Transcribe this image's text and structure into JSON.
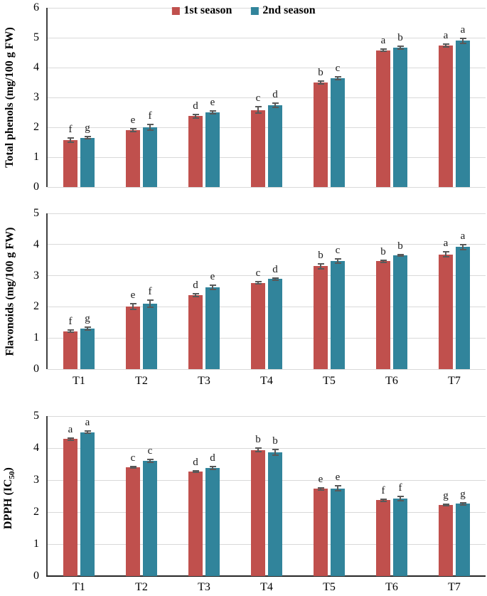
{
  "legend": {
    "items": [
      {
        "label": "1st season",
        "color": "#c0504d"
      },
      {
        "label": "2nd season",
        "color": "#31849b"
      }
    ]
  },
  "colors": {
    "series1": "#c0504d",
    "series2": "#31849b",
    "gridline": "#d9d9d9",
    "axis": "#404040",
    "error_bar": "#595959"
  },
  "chart_data": [
    {
      "type": "bar",
      "title": "",
      "xlabel": "",
      "ylabel": "Total phenols (mg/100 g FW)",
      "ylabel_prefix": "",
      "ylabel_sub": "",
      "ylabel_suffix": "",
      "ylim": [
        0,
        6
      ],
      "yticks": [
        0,
        1,
        2,
        3,
        4,
        5,
        6
      ],
      "grid": true,
      "legend_position": "top-center",
      "show_x_labels": false,
      "categories": [
        "T1",
        "T2",
        "T3",
        "T4",
        "T5",
        "T6",
        "T7"
      ],
      "series": [
        {
          "name": "1st season",
          "color": "#c0504d",
          "values": [
            1.58,
            1.9,
            2.37,
            2.58,
            3.5,
            4.58,
            4.73
          ],
          "errors": [
            0.07,
            0.05,
            0.06,
            0.1,
            0.04,
            0.03,
            0.05
          ],
          "letters": [
            "f",
            "e",
            "d",
            "c",
            "b",
            "a",
            "a"
          ]
        },
        {
          "name": "2nd season",
          "color": "#31849b",
          "values": [
            1.65,
            2.0,
            2.5,
            2.73,
            3.65,
            4.67,
            4.9
          ],
          "errors": [
            0.04,
            0.09,
            0.05,
            0.07,
            0.05,
            0.04,
            0.08
          ],
          "letters": [
            "g",
            "f",
            "e",
            "d",
            "c",
            "b",
            "a"
          ]
        }
      ]
    },
    {
      "type": "bar",
      "title": "",
      "xlabel": "",
      "ylabel": "Flavonoids (mg/100 g FW)",
      "ylabel_prefix": "",
      "ylabel_sub": "",
      "ylabel_suffix": "",
      "ylim": [
        0,
        5
      ],
      "yticks": [
        0,
        1,
        2,
        3,
        4,
        5
      ],
      "grid": true,
      "legend_position": "none",
      "show_x_labels": true,
      "categories": [
        "T1",
        "T2",
        "T3",
        "T4",
        "T5",
        "T6",
        "T7"
      ],
      "series": [
        {
          "name": "1st season",
          "color": "#c0504d",
          "values": [
            1.22,
            2.0,
            2.38,
            2.77,
            3.3,
            3.46,
            3.68
          ],
          "errors": [
            0.03,
            0.09,
            0.05,
            0.03,
            0.07,
            0.04,
            0.08
          ],
          "letters": [
            "f",
            "e",
            "d",
            "c",
            "b",
            "b",
            "a"
          ]
        },
        {
          "name": "2nd season",
          "color": "#31849b",
          "values": [
            1.3,
            2.1,
            2.63,
            2.89,
            3.47,
            3.65,
            3.92
          ],
          "errors": [
            0.04,
            0.12,
            0.07,
            0.04,
            0.07,
            0.03,
            0.08
          ],
          "letters": [
            "g",
            "f",
            "e",
            "d",
            "c",
            "b",
            "a"
          ]
        }
      ]
    },
    {
      "type": "bar",
      "title": "",
      "xlabel": "",
      "ylabel": "DPPH (IC50)",
      "ylabel_prefix": "DPPH (IC",
      "ylabel_sub": "50",
      "ylabel_suffix": ")",
      "ylim": [
        0,
        5
      ],
      "yticks": [
        0,
        1,
        2,
        3,
        4,
        5
      ],
      "grid": true,
      "legend_position": "none",
      "show_x_labels": true,
      "categories": [
        "T1",
        "T2",
        "T3",
        "T4",
        "T5",
        "T6",
        "T7"
      ],
      "series": [
        {
          "name": "1st season",
          "color": "#c0504d",
          "values": [
            4.28,
            3.4,
            3.27,
            3.94,
            2.73,
            2.37,
            2.22
          ],
          "errors": [
            0.03,
            0.03,
            0.03,
            0.05,
            0.03,
            0.03,
            0.03
          ],
          "letters": [
            "a",
            "c",
            "d",
            "b",
            "e",
            "f",
            "g"
          ]
        },
        {
          "name": "2nd season",
          "color": "#31849b",
          "values": [
            4.5,
            3.6,
            3.38,
            3.87,
            2.74,
            2.43,
            2.26
          ],
          "errors": [
            0.04,
            0.05,
            0.04,
            0.09,
            0.08,
            0.07,
            0.04
          ],
          "letters": [
            "a",
            "c",
            "d",
            "b",
            "e",
            "f",
            "g"
          ]
        }
      ]
    }
  ]
}
